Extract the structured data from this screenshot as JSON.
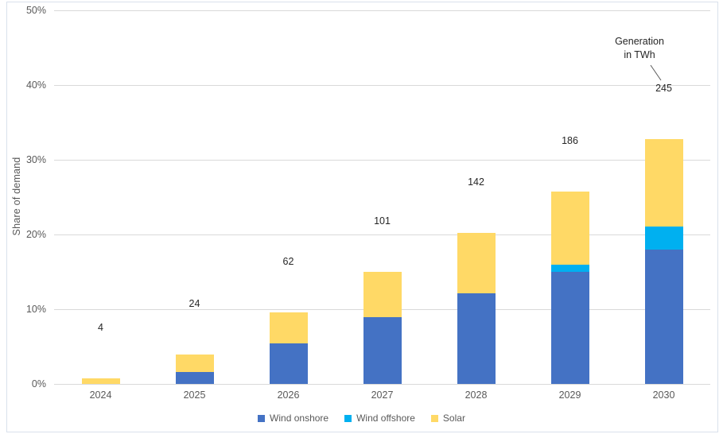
{
  "chart_data": {
    "type": "bar",
    "stacked": true,
    "title": "",
    "xlabel": "",
    "ylabel": "Share of demand",
    "ylim": [
      0,
      50
    ],
    "yticks": [
      0,
      10,
      20,
      30,
      40,
      50
    ],
    "ytick_labels": [
      "0%",
      "10%",
      "20%",
      "30%",
      "40%",
      "50%"
    ],
    "grid": true,
    "legend_position": "bottom",
    "categories": [
      "2024",
      "2025",
      "2026",
      "2027",
      "2028",
      "2029",
      "2030"
    ],
    "series": [
      {
        "name": "Wind onshore",
        "color": "#4472C4",
        "values": [
          0,
          1.6,
          5.4,
          8.9,
          12.1,
          15.0,
          18.0
        ]
      },
      {
        "name": "Wind offshore",
        "color": "#00B0F0",
        "values": [
          0,
          0,
          0,
          0,
          0,
          1.0,
          3.1
        ]
      },
      {
        "name": "Solar",
        "color": "#FFD966",
        "values": [
          0.7,
          2.3,
          4.2,
          6.1,
          8.1,
          9.7,
          11.7
        ]
      }
    ],
    "totals_share_pct": [
      0.7,
      3.9,
      9.6,
      15.0,
      20.2,
      25.7,
      32.8
    ],
    "bar_labels": [
      "4",
      "24",
      "62",
      "101",
      "142",
      "186",
      "245"
    ],
    "annotation": {
      "line1": "Generation",
      "line2": "in TWh",
      "points_to_label": "245"
    }
  },
  "colors": {
    "grid": "#d9d9d9",
    "axis_text": "#595959",
    "label_text": "#262626",
    "frame": "#d9e1ec",
    "leader_line": "#595959"
  }
}
